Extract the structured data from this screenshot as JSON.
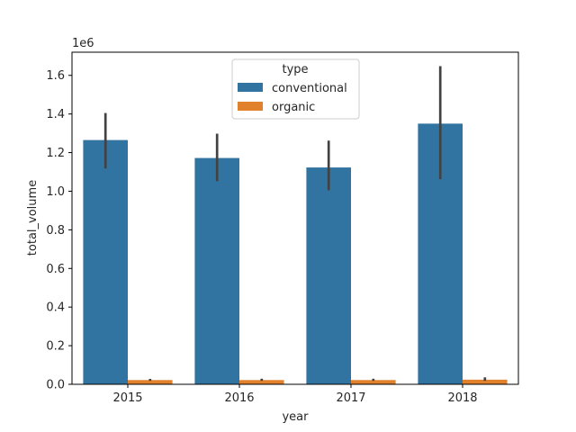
{
  "chart_data": {
    "type": "bar",
    "xlabel": "year",
    "ylabel": "total_volume",
    "offset_label": "1e6",
    "categories": [
      "2015",
      "2016",
      "2017",
      "2018"
    ],
    "ylim": [
      0,
      1720000
    ],
    "yticks": [
      0.0,
      0.2,
      0.4,
      0.6,
      0.8,
      1.0,
      1.2,
      1.4,
      1.6
    ],
    "ytick_scale": 1000000,
    "grid": false,
    "legend": {
      "title": "type",
      "placement": "top-center"
    },
    "series": [
      {
        "name": "conventional",
        "color": "#3274a1",
        "values": [
          1265000,
          1172000,
          1123000,
          1350000
        ],
        "ci_low": [
          1118000,
          1052000,
          1005000,
          1062000
        ],
        "ci_high": [
          1405000,
          1298000,
          1262000,
          1648000
        ]
      },
      {
        "name": "organic",
        "color": "#e1812c",
        "values": [
          22000,
          22000,
          22000,
          24000
        ],
        "ci_low": [
          18000,
          18000,
          18000,
          18000
        ],
        "ci_high": [
          28000,
          29000,
          29000,
          36000
        ]
      }
    ]
  }
}
